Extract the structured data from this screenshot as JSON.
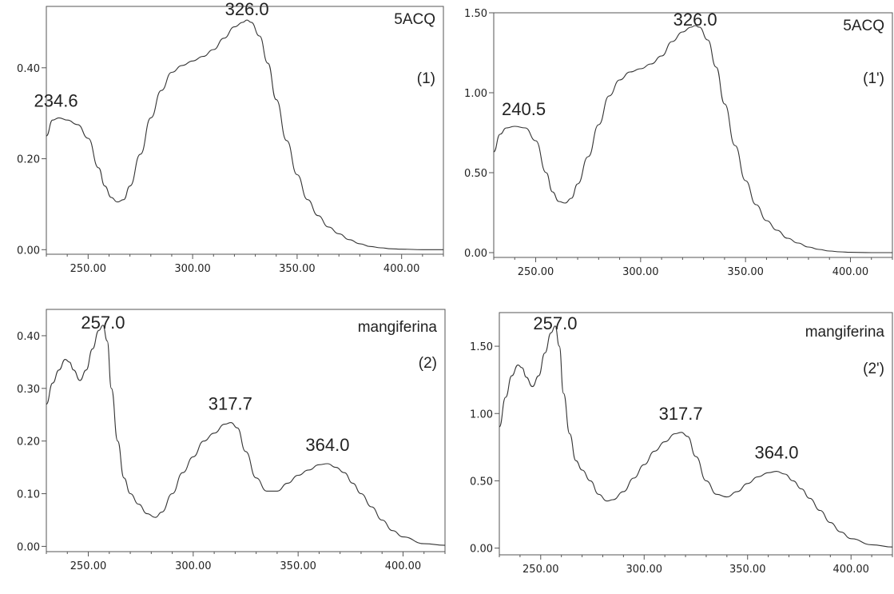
{
  "chart_data": [
    {
      "type": "line",
      "title": "",
      "xlabel": "",
      "ylabel": "",
      "xlim": [
        230,
        420
      ],
      "ylim": [
        -0.01,
        0.535
      ],
      "xticks": [
        250,
        300,
        350,
        400
      ],
      "xtick_labels": [
        "250.00",
        "300.00",
        "350.00",
        "400.00"
      ],
      "yticks": [
        0.0,
        0.2,
        0.4
      ],
      "ytick_labels": [
        "0.00",
        "0.20",
        "0.40"
      ],
      "legend": [
        "5ACQ",
        "(1)"
      ],
      "annotations": [
        {
          "text": "234.6",
          "x": 234.6,
          "y": 0.29
        },
        {
          "text": "326.0",
          "x": 326.0,
          "y": 0.505
        }
      ],
      "series": [
        {
          "x": [
            230,
            233,
            236,
            240,
            245,
            250,
            255,
            258,
            261,
            264,
            267,
            270,
            275,
            280,
            285,
            290,
            295,
            300,
            305,
            310,
            315,
            320,
            324,
            326,
            328,
            332,
            336,
            340,
            345,
            350,
            355,
            360,
            365,
            370,
            375,
            380,
            385,
            390,
            395,
            400,
            410,
            420
          ],
          "y": [
            0.25,
            0.285,
            0.29,
            0.285,
            0.275,
            0.245,
            0.18,
            0.14,
            0.115,
            0.105,
            0.11,
            0.14,
            0.21,
            0.29,
            0.35,
            0.39,
            0.405,
            0.415,
            0.425,
            0.44,
            0.465,
            0.49,
            0.5,
            0.505,
            0.5,
            0.47,
            0.41,
            0.33,
            0.24,
            0.165,
            0.11,
            0.075,
            0.05,
            0.035,
            0.022,
            0.013,
            0.007,
            0.004,
            0.002,
            0.001,
            0.0,
            0.0
          ]
        }
      ]
    },
    {
      "type": "line",
      "title": "",
      "xlabel": "",
      "ylabel": "",
      "xlim": [
        230,
        420
      ],
      "ylim": [
        -0.03,
        1.5
      ],
      "xticks": [
        250,
        300,
        350,
        400
      ],
      "xtick_labels": [
        "250.00",
        "300.00",
        "350.00",
        "400.00"
      ],
      "yticks": [
        0.0,
        0.5,
        1.0,
        1.5
      ],
      "ytick_labels": [
        "0.00",
        "0.50",
        "1.00",
        "1.50"
      ],
      "legend": [
        "5ACQ",
        "(1')"
      ],
      "annotations": [
        {
          "text": "240.5",
          "x": 240.5,
          "y": 0.79
        },
        {
          "text": "326.0",
          "x": 326.0,
          "y": 1.42
        }
      ],
      "series": [
        {
          "x": [
            230,
            233,
            236,
            240,
            245,
            250,
            255,
            258,
            261,
            264,
            267,
            270,
            275,
            280,
            285,
            290,
            295,
            300,
            305,
            310,
            315,
            320,
            324,
            326,
            328,
            332,
            336,
            340,
            345,
            350,
            355,
            360,
            365,
            370,
            375,
            380,
            385,
            390,
            395,
            400,
            410,
            420
          ],
          "y": [
            0.63,
            0.74,
            0.78,
            0.79,
            0.78,
            0.7,
            0.5,
            0.38,
            0.32,
            0.31,
            0.34,
            0.43,
            0.6,
            0.8,
            0.98,
            1.08,
            1.13,
            1.15,
            1.18,
            1.23,
            1.32,
            1.38,
            1.41,
            1.42,
            1.41,
            1.33,
            1.16,
            0.93,
            0.67,
            0.45,
            0.3,
            0.2,
            0.14,
            0.09,
            0.06,
            0.035,
            0.02,
            0.01,
            0.005,
            0.002,
            0.0,
            0.0
          ]
        }
      ]
    },
    {
      "type": "line",
      "title": "",
      "xlabel": "",
      "ylabel": "",
      "xlim": [
        230,
        420
      ],
      "ylim": [
        -0.01,
        0.45
      ],
      "xticks": [
        250,
        300,
        350,
        400
      ],
      "xtick_labels": [
        "250.00",
        "300.00",
        "350.00",
        "400.00"
      ],
      "yticks": [
        0.0,
        0.1,
        0.2,
        0.3,
        0.4
      ],
      "ytick_labels": [
        "0.00",
        "0.10",
        "0.20",
        "0.30",
        "0.40"
      ],
      "legend": [
        "mangiferina",
        "(2)"
      ],
      "annotations": [
        {
          "text": "257.0",
          "x": 257.0,
          "y": 0.42
        },
        {
          "text": "317.7",
          "x": 317.7,
          "y": 0.235
        },
        {
          "text": "364.0",
          "x": 364.0,
          "y": 0.157
        }
      ],
      "series": [
        {
          "x": [
            230,
            233,
            236,
            239,
            241,
            243,
            246,
            249,
            252,
            255,
            257,
            259,
            261,
            264,
            267,
            270,
            274,
            278,
            282,
            285,
            290,
            295,
            300,
            305,
            310,
            315,
            318,
            321,
            325,
            330,
            335,
            340,
            345,
            350,
            355,
            360,
            364,
            368,
            372,
            376,
            380,
            385,
            390,
            395,
            400,
            410,
            420
          ],
          "y": [
            0.27,
            0.31,
            0.335,
            0.355,
            0.35,
            0.335,
            0.315,
            0.335,
            0.375,
            0.41,
            0.42,
            0.39,
            0.3,
            0.2,
            0.13,
            0.1,
            0.08,
            0.062,
            0.055,
            0.065,
            0.1,
            0.14,
            0.17,
            0.2,
            0.215,
            0.232,
            0.235,
            0.225,
            0.18,
            0.13,
            0.105,
            0.105,
            0.12,
            0.135,
            0.145,
            0.155,
            0.157,
            0.15,
            0.14,
            0.12,
            0.1,
            0.075,
            0.05,
            0.03,
            0.018,
            0.005,
            0.002
          ]
        }
      ]
    },
    {
      "type": "line",
      "title": "",
      "xlabel": "",
      "ylabel": "",
      "xlim": [
        230,
        420
      ],
      "ylim": [
        -0.05,
        1.75
      ],
      "xticks": [
        250,
        300,
        350,
        400
      ],
      "xtick_labels": [
        "250.00",
        "300.00",
        "350.00",
        "400.00"
      ],
      "yticks": [
        0.0,
        0.5,
        1.0,
        1.5
      ],
      "ytick_labels": [
        "0.00",
        "0.50",
        "1.00",
        "1.50"
      ],
      "legend": [
        "mangiferina",
        "(2')"
      ],
      "annotations": [
        {
          "text": "257.0",
          "x": 257.0,
          "y": 1.65
        },
        {
          "text": "317.7",
          "x": 317.7,
          "y": 0.86
        },
        {
          "text": "364.0",
          "x": 364.0,
          "y": 0.57
        }
      ],
      "series": [
        {
          "x": [
            230,
            233,
            236,
            239,
            241,
            243,
            246,
            249,
            252,
            255,
            257,
            259,
            261,
            264,
            267,
            270,
            274,
            278,
            282,
            285,
            290,
            295,
            300,
            305,
            310,
            315,
            318,
            321,
            325,
            330,
            335,
            340,
            345,
            350,
            355,
            360,
            364,
            368,
            372,
            376,
            380,
            385,
            390,
            395,
            400,
            410,
            420
          ],
          "y": [
            0.9,
            1.12,
            1.28,
            1.36,
            1.34,
            1.27,
            1.2,
            1.28,
            1.45,
            1.6,
            1.65,
            1.5,
            1.15,
            0.85,
            0.65,
            0.58,
            0.5,
            0.4,
            0.35,
            0.36,
            0.42,
            0.52,
            0.62,
            0.72,
            0.79,
            0.85,
            0.86,
            0.83,
            0.68,
            0.5,
            0.4,
            0.38,
            0.42,
            0.48,
            0.53,
            0.56,
            0.57,
            0.55,
            0.5,
            0.44,
            0.37,
            0.28,
            0.19,
            0.12,
            0.07,
            0.025,
            0.008
          ]
        }
      ]
    }
  ]
}
